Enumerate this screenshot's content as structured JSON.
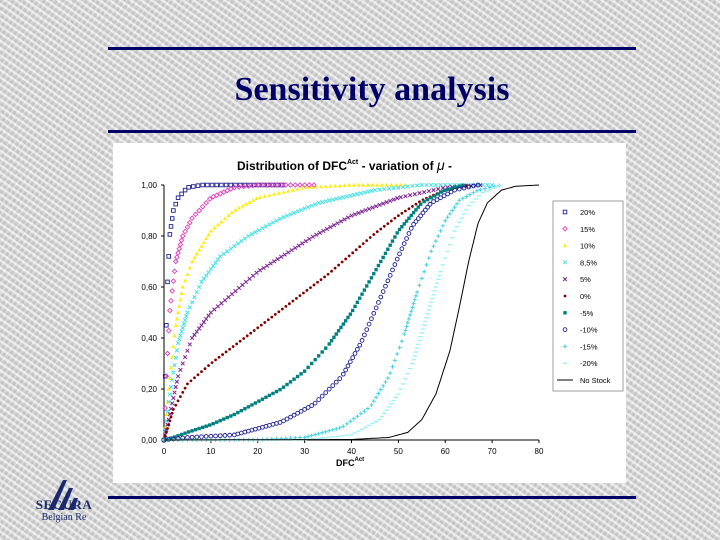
{
  "slide": {
    "title": "Sensitivity analysis",
    "logo_name": "SECURA",
    "logo_subtitle": "Belgian Re",
    "title_color": "#000066"
  },
  "chart_data": {
    "type": "line",
    "title_main": "Distribution of DFC",
    "title_sup": "Act",
    "title_rest": "- variation of",
    "title_symbol": "μ",
    "title_end": "-",
    "xlabel_main": "DFC",
    "xlabel_sup": "Act",
    "ylabel": "",
    "xlim": [
      0,
      80
    ],
    "ylim": [
      0,
      1
    ],
    "x_ticks": [
      "0",
      "10",
      "20",
      "30",
      "40",
      "50",
      "60",
      "70",
      "80"
    ],
    "y_ticks": [
      "0,00",
      "0,20",
      "0,40",
      "0,60",
      "0,80",
      "1,00"
    ],
    "grid": false,
    "legend_position": "right",
    "series": [
      {
        "name": "20%",
        "color": "#1f1f8f",
        "marker": "square-open",
        "anchors": [
          [
            0,
            0
          ],
          [
            0.3,
            0.3
          ],
          [
            0.7,
            0.6
          ],
          [
            1.2,
            0.8
          ],
          [
            2,
            0.9
          ],
          [
            3,
            0.95
          ],
          [
            5,
            0.99
          ],
          [
            8,
            1
          ],
          [
            26,
            1
          ]
        ]
      },
      {
        "name": "15%",
        "color": "#e040c0",
        "marker": "diamond-open",
        "anchors": [
          [
            0,
            0
          ],
          [
            0.5,
            0.25
          ],
          [
            1.2,
            0.5
          ],
          [
            2.5,
            0.7
          ],
          [
            4,
            0.8
          ],
          [
            6,
            0.87
          ],
          [
            10,
            0.95
          ],
          [
            15,
            0.99
          ],
          [
            20,
            1
          ],
          [
            32,
            1
          ]
        ]
      },
      {
        "name": "10%",
        "color": "#ffee00",
        "marker": "triangle",
        "anchors": [
          [
            0,
            0
          ],
          [
            1,
            0.2
          ],
          [
            2.5,
            0.45
          ],
          [
            4,
            0.6
          ],
          [
            6,
            0.7
          ],
          [
            10,
            0.82
          ],
          [
            15,
            0.9
          ],
          [
            20,
            0.95
          ],
          [
            30,
            0.99
          ],
          [
            40,
            1
          ],
          [
            52,
            1
          ]
        ]
      },
      {
        "name": "8,5%",
        "color": "#44e0e8",
        "marker": "x",
        "anchors": [
          [
            0,
            0
          ],
          [
            1,
            0.15
          ],
          [
            3,
            0.38
          ],
          [
            5,
            0.5
          ],
          [
            8,
            0.62
          ],
          [
            12,
            0.72
          ],
          [
            18,
            0.8
          ],
          [
            25,
            0.87
          ],
          [
            33,
            0.93
          ],
          [
            45,
            0.98
          ],
          [
            55,
            1
          ],
          [
            70,
            1
          ]
        ]
      },
      {
        "name": "5%",
        "color": "#7a1f8f",
        "marker": "x",
        "anchors": [
          [
            0,
            0
          ],
          [
            1,
            0.08
          ],
          [
            3,
            0.25
          ],
          [
            6,
            0.4
          ],
          [
            10,
            0.5
          ],
          [
            15,
            0.58
          ],
          [
            20,
            0.66
          ],
          [
            26,
            0.73
          ],
          [
            32,
            0.8
          ],
          [
            40,
            0.88
          ],
          [
            50,
            0.95
          ],
          [
            60,
            0.99
          ],
          [
            68,
            1
          ]
        ]
      },
      {
        "name": "0%",
        "color": "#800000",
        "marker": "dot",
        "anchors": [
          [
            0,
            0
          ],
          [
            2,
            0.12
          ],
          [
            5,
            0.22
          ],
          [
            10,
            0.3
          ],
          [
            15,
            0.37
          ],
          [
            20,
            0.44
          ],
          [
            25,
            0.51
          ],
          [
            30,
            0.58
          ],
          [
            35,
            0.65
          ],
          [
            40,
            0.73
          ],
          [
            45,
            0.81
          ],
          [
            50,
            0.88
          ],
          [
            55,
            0.94
          ],
          [
            60,
            0.98
          ],
          [
            65,
            1
          ]
        ]
      },
      {
        "name": "-5%",
        "color": "#008080",
        "marker": "square",
        "anchors": [
          [
            0,
            0
          ],
          [
            2,
            0.01
          ],
          [
            5,
            0.03
          ],
          [
            10,
            0.06
          ],
          [
            15,
            0.1
          ],
          [
            20,
            0.15
          ],
          [
            25,
            0.2
          ],
          [
            30,
            0.27
          ],
          [
            35,
            0.37
          ],
          [
            40,
            0.5
          ],
          [
            45,
            0.66
          ],
          [
            50,
            0.82
          ],
          [
            55,
            0.93
          ],
          [
            60,
            0.98
          ],
          [
            64,
            1
          ]
        ]
      },
      {
        "name": "-10%",
        "color": "#1f1f8f",
        "marker": "circle-open",
        "anchors": [
          [
            0,
            0
          ],
          [
            5,
            0.01
          ],
          [
            15,
            0.02
          ],
          [
            25,
            0.07
          ],
          [
            32,
            0.14
          ],
          [
            38,
            0.25
          ],
          [
            42,
            0.38
          ],
          [
            46,
            0.55
          ],
          [
            50,
            0.72
          ],
          [
            53,
            0.84
          ],
          [
            57,
            0.93
          ],
          [
            62,
            0.98
          ],
          [
            67,
            1
          ]
        ]
      },
      {
        "name": "-15%",
        "color": "#44d0e0",
        "marker": "plus",
        "anchors": [
          [
            0,
            0
          ],
          [
            20,
            0.001
          ],
          [
            30,
            0.01
          ],
          [
            38,
            0.05
          ],
          [
            44,
            0.13
          ],
          [
            48,
            0.25
          ],
          [
            51,
            0.4
          ],
          [
            54,
            0.58
          ],
          [
            57,
            0.74
          ],
          [
            60,
            0.86
          ],
          [
            63,
            0.94
          ],
          [
            67,
            0.98
          ],
          [
            72,
            1
          ]
        ]
      },
      {
        "name": "-20%",
        "color": "#a0f0f8",
        "marker": "dash",
        "anchors": [
          [
            0,
            0
          ],
          [
            30,
            0.001
          ],
          [
            40,
            0.02
          ],
          [
            46,
            0.08
          ],
          [
            50,
            0.18
          ],
          [
            53,
            0.3
          ],
          [
            56,
            0.48
          ],
          [
            59,
            0.66
          ],
          [
            62,
            0.82
          ],
          [
            65,
            0.92
          ],
          [
            68,
            0.97
          ],
          [
            72,
            1
          ]
        ]
      },
      {
        "name": "No Stock",
        "color": "#000000",
        "marker": "line",
        "anchors": [
          [
            0,
            0
          ],
          [
            40,
            0.002
          ],
          [
            48,
            0.01
          ],
          [
            52,
            0.03
          ],
          [
            55,
            0.08
          ],
          [
            58,
            0.18
          ],
          [
            61,
            0.35
          ],
          [
            63,
            0.52
          ],
          [
            65,
            0.7
          ],
          [
            67,
            0.85
          ],
          [
            69,
            0.93
          ],
          [
            72,
            0.98
          ],
          [
            75,
            0.995
          ],
          [
            80,
            1
          ]
        ]
      }
    ]
  }
}
